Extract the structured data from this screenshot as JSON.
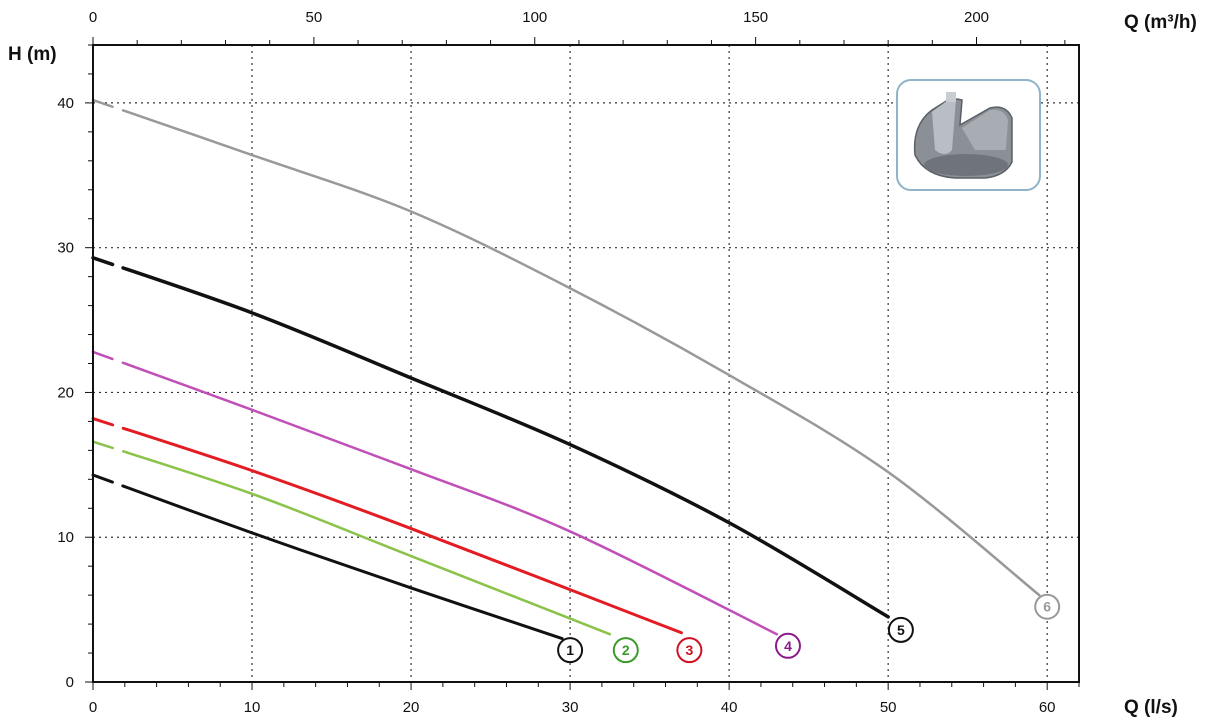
{
  "chart_data": {
    "type": "line",
    "title": "",
    "xlabel": "Q (l/s)",
    "x2label": "Q (m³/h)",
    "ylabel": "H (m)",
    "xlim": [
      0,
      62
    ],
    "x2lim": [
      0,
      223.2
    ],
    "ylim": [
      0,
      44
    ],
    "x_ticks": [
      0,
      10,
      20,
      30,
      40,
      50,
      60
    ],
    "x2_ticks": [
      0,
      50,
      100,
      150,
      200
    ],
    "y_ticks": [
      0,
      10,
      20,
      30,
      40
    ],
    "grid": true,
    "series": [
      {
        "name": "1",
        "color": "#111111",
        "width": 3,
        "points": [
          [
            0,
            14.3
          ],
          [
            10,
            10.3
          ],
          [
            20,
            6.5
          ],
          [
            29.5,
            3.0
          ]
        ],
        "label_at": [
          30.0,
          2.2
        ],
        "label_color": "#111111"
      },
      {
        "name": "2",
        "color": "#8bc34a",
        "width": 2.5,
        "points": [
          [
            0,
            16.6
          ],
          [
            10,
            13.0
          ],
          [
            20,
            8.7
          ],
          [
            32.5,
            3.3
          ]
        ],
        "label_at": [
          33.5,
          2.2
        ],
        "label_color": "#3a9a2a"
      },
      {
        "name": "3",
        "color": "#e31b23",
        "width": 3,
        "points": [
          [
            0,
            18.2
          ],
          [
            10,
            14.6
          ],
          [
            20,
            10.6
          ],
          [
            37,
            3.4
          ]
        ],
        "label_at": [
          37.5,
          2.2
        ],
        "label_color": "#d01020"
      },
      {
        "name": "4",
        "color": "#c050b8",
        "width": 2.5,
        "points": [
          [
            0,
            22.8
          ],
          [
            10,
            18.8
          ],
          [
            20,
            14.7
          ],
          [
            30,
            10.4
          ],
          [
            43,
            3.3
          ]
        ],
        "label_at": [
          43.7,
          2.5
        ],
        "label_color": "#8a1a8a"
      },
      {
        "name": "5",
        "color": "#111111",
        "width": 3.5,
        "points": [
          [
            0,
            29.3
          ],
          [
            10,
            25.5
          ],
          [
            20,
            21.0
          ],
          [
            30,
            16.4
          ],
          [
            40,
            11.0
          ],
          [
            50,
            4.5
          ]
        ],
        "label_at": [
          50.8,
          3.6
        ],
        "label_color": "#111111"
      },
      {
        "name": "6",
        "color": "#999999",
        "width": 2.5,
        "points": [
          [
            0,
            40.2
          ],
          [
            10,
            36.4
          ],
          [
            20,
            32.5
          ],
          [
            30,
            27.2
          ],
          [
            40,
            21.2
          ],
          [
            50,
            14.5
          ],
          [
            59.5,
            6.0
          ]
        ],
        "label_at": [
          60.0,
          5.2
        ],
        "label_color": "#999999"
      }
    ]
  }
}
